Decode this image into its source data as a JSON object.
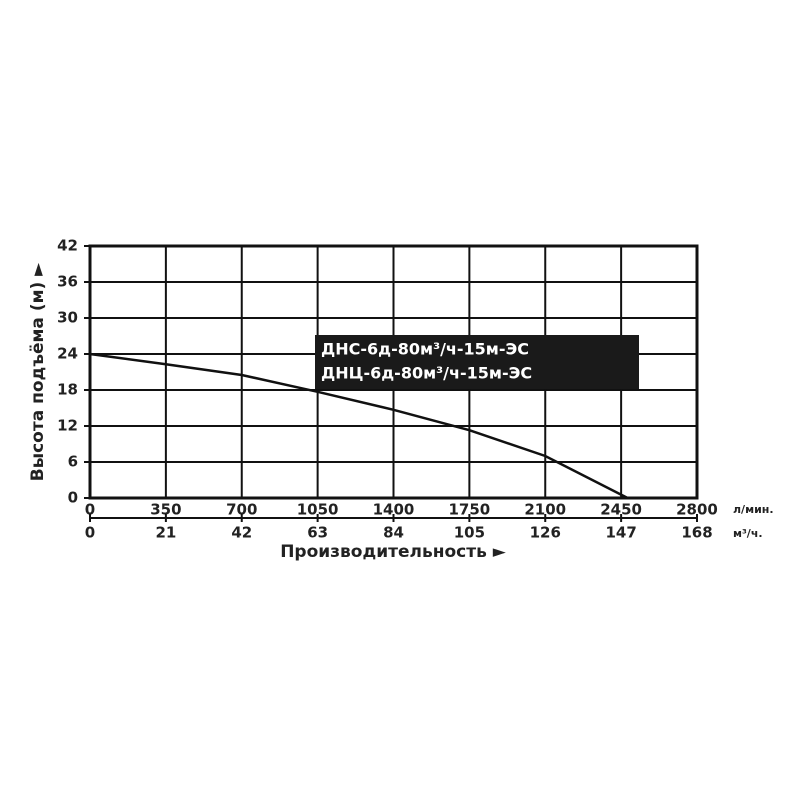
{
  "chart_data": {
    "type": "line",
    "y_label": "Высота подъёма (м) ►",
    "x_label": "Производительность ►",
    "x_unit": "л/мин.",
    "x2_unit": "м³/ч.",
    "annotation": [
      "ДНС-6д-80м³/ч-15м-ЭС",
      "ДНЦ-6д-80м³/ч-15м-ЭС"
    ],
    "x": [
      0,
      350,
      700,
      1050,
      1400,
      1750,
      2100,
      2480
    ],
    "series": [
      {
        "color": "#111111",
        "values": [
          24,
          22.3,
          20.5,
          17.7,
          14.7,
          11.3,
          7,
          0
        ]
      }
    ],
    "xlim": [
      0,
      2800
    ],
    "xticks": [
      0,
      350,
      700,
      1050,
      1400,
      1750,
      2100,
      2450,
      2800
    ],
    "x2lim": [
      0,
      168
    ],
    "x2ticks": [
      0,
      21,
      42,
      63,
      84,
      105,
      126,
      147,
      168
    ],
    "ylim": [
      0,
      42
    ],
    "yticks": [
      0,
      6,
      12,
      18,
      24,
      30,
      36,
      42
    ],
    "grid": true
  }
}
